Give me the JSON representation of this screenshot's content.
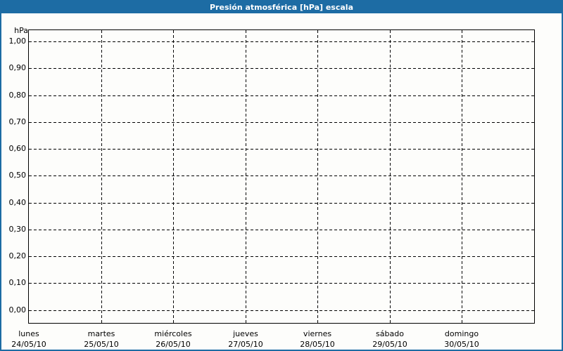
{
  "window": {
    "title": "Presión atmosférica [hPa] escala"
  },
  "colors": {
    "title_bar_bg": "#1D6CA4",
    "title_text": "#FFFFFF",
    "frame_border": "#1D6CA4",
    "grid_line": "#000000",
    "plot_border": "#000000",
    "background": "#FDFDFB",
    "label_text": "#000000"
  },
  "chart_data": {
    "type": "line",
    "title": "Presión atmosférica [hPa] escala",
    "xlabel": "",
    "ylabel": "hPa",
    "ylim": [
      0.0,
      1.0
    ],
    "y_tick_step": 0.1,
    "y_tick_values": [
      1.0,
      0.9,
      0.8,
      0.7,
      0.6,
      0.5,
      0.4,
      0.3,
      0.2,
      0.1,
      0.0
    ],
    "y_tick_labels": [
      "1,00",
      "0,90",
      "0,80",
      "0,70",
      "0,60",
      "0,50",
      "0,40",
      "0,30",
      "0,20",
      "0,10",
      "0,00"
    ],
    "x_categories": [
      {
        "day": "lunes",
        "date": "24/05/10"
      },
      {
        "day": "martes",
        "date": "25/05/10"
      },
      {
        "day": "miércoles",
        "date": "26/05/10"
      },
      {
        "day": "jueves",
        "date": "27/05/10"
      },
      {
        "day": "viernes",
        "date": "28/05/10"
      },
      {
        "day": "sábado",
        "date": "29/05/10"
      },
      {
        "day": "domingo",
        "date": "30/05/10"
      }
    ],
    "series": [],
    "grid": "dashed",
    "legend": "none"
  }
}
